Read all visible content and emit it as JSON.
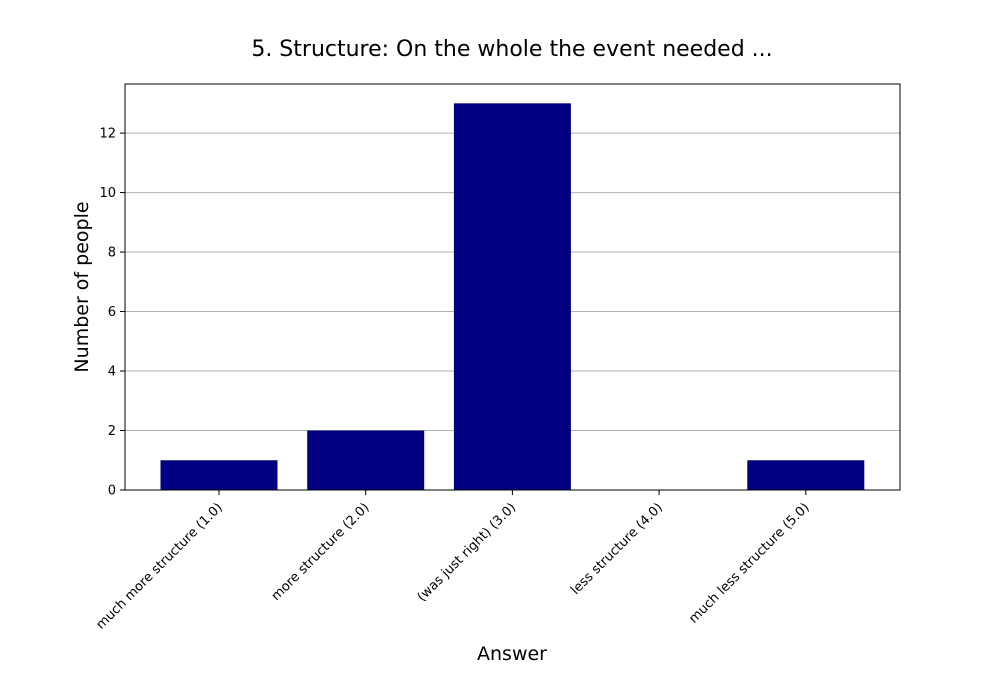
{
  "chart_data": {
    "type": "bar",
    "title": "5. Structure: On the whole the event needed ...",
    "xlabel": "Answer",
    "ylabel": "Number of people",
    "categories": [
      "much more structure (1.0)",
      "more structure (2.0)",
      "(was just right) (3.0)",
      "less structure (4.0)",
      "much less structure (5.0)"
    ],
    "values": [
      1,
      2,
      13,
      0,
      1
    ],
    "ylim": [
      0,
      13.65
    ],
    "yticks": [
      0,
      2,
      4,
      6,
      8,
      10,
      12
    ],
    "grid": true,
    "grid_axis": "y",
    "bar_color": "#000080",
    "legend": false
  }
}
